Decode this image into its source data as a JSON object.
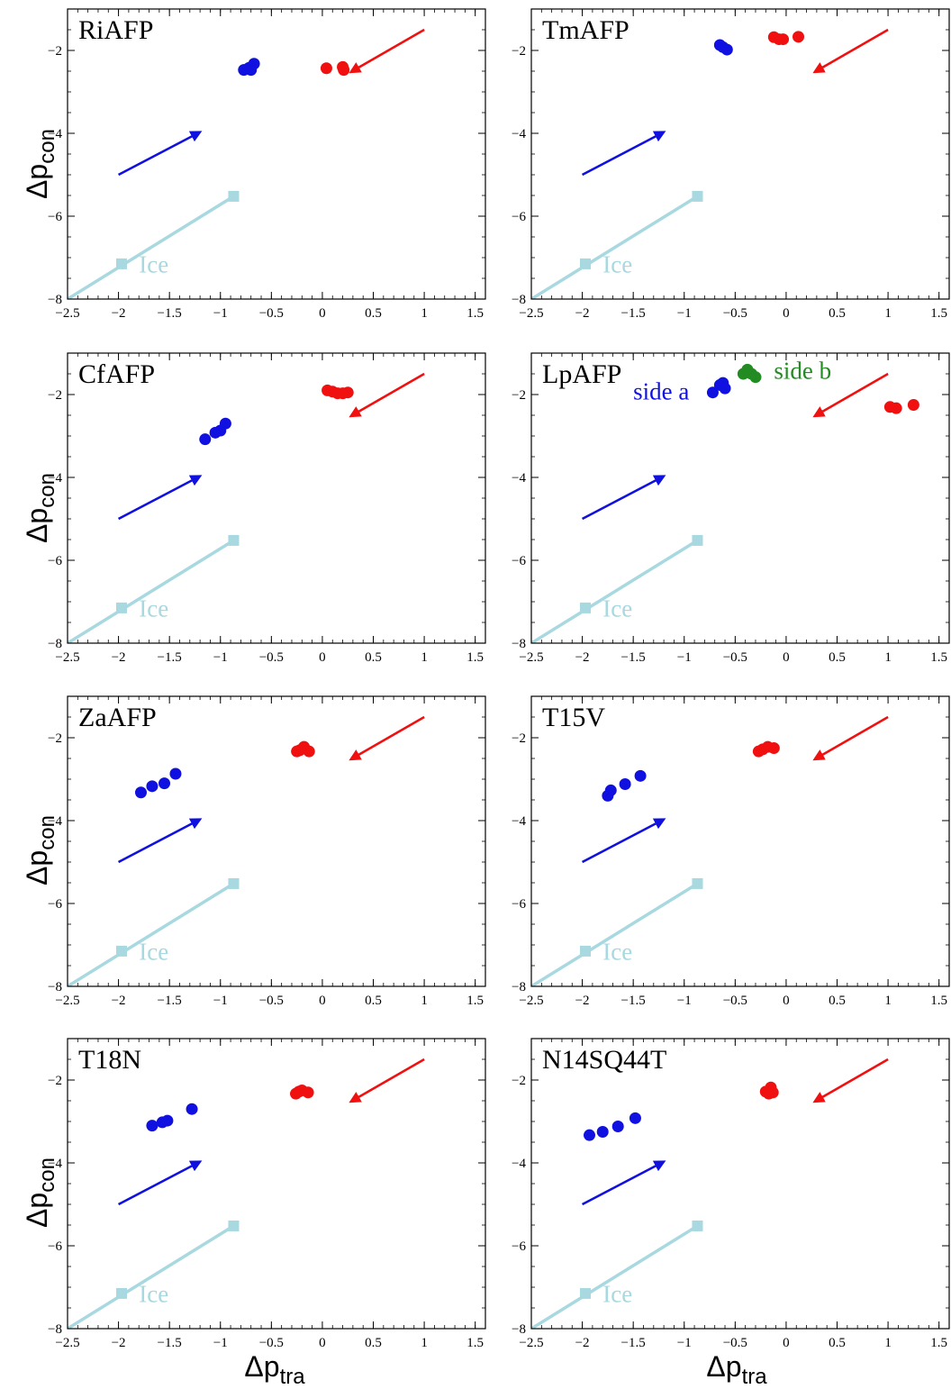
{
  "chart_data": {
    "type": "scatter",
    "xlabel": "Δp",
    "xlabel_sub": "tra",
    "ylabel": "Δp",
    "ylabel_sub": "con",
    "xlim": [
      -2.5,
      1.6
    ],
    "ylim": [
      -8,
      -1
    ],
    "xticks": [
      -2.5,
      -2,
      -1.5,
      -1,
      -0.5,
      0,
      0.5,
      1,
      1.5
    ],
    "xtick_labels": [
      "−2.5",
      "−2",
      "−1.5",
      "−1",
      "−0.5",
      "0",
      "0.5",
      "1",
      "1.5"
    ],
    "yticks": [
      -8,
      -6,
      -4,
      -2
    ],
    "ytick_labels": [
      "−8",
      "−6",
      "−4",
      "−2"
    ],
    "colors": {
      "blue": "#1010e0",
      "red": "#f01010",
      "green": "#228b22",
      "ice": "#a8d8e0"
    },
    "ice": {
      "label": "Ice",
      "line": [
        [
          -2.5,
          -8.0
        ],
        [
          -0.87,
          -5.52
        ]
      ],
      "markers": [
        [
          -1.97,
          -7.15
        ],
        [
          -0.87,
          -5.52
        ]
      ]
    },
    "blue_arrow": {
      "from": [
        -2.0,
        -5.0
      ],
      "to": [
        -1.2,
        -3.97
      ]
    },
    "red_arrow": {
      "from": [
        1.0,
        -1.5
      ],
      "to": [
        0.28,
        -2.52
      ]
    },
    "panels": [
      {
        "title": "RiAFP",
        "blue_points": [
          [
            -0.77,
            -2.47
          ],
          [
            -0.72,
            -2.42
          ],
          [
            -0.7,
            -2.47
          ],
          [
            -0.67,
            -2.32
          ]
        ],
        "red_points": [
          [
            0.04,
            -2.43
          ],
          [
            0.2,
            -2.4
          ],
          [
            0.21,
            -2.47
          ]
        ]
      },
      {
        "title": "TmAFP",
        "blue_points": [
          [
            -0.65,
            -1.87
          ],
          [
            -0.62,
            -1.92
          ],
          [
            -0.58,
            -1.98
          ]
        ],
        "red_points": [
          [
            -0.12,
            -1.68
          ],
          [
            -0.07,
            -1.73
          ],
          [
            -0.03,
            -1.73
          ],
          [
            0.12,
            -1.67
          ]
        ]
      },
      {
        "title": "CfAFP",
        "blue_points": [
          [
            -1.15,
            -3.08
          ],
          [
            -1.05,
            -2.92
          ],
          [
            -1.0,
            -2.87
          ],
          [
            -0.95,
            -2.7
          ]
        ],
        "red_points": [
          [
            0.05,
            -1.9
          ],
          [
            0.1,
            -1.93
          ],
          [
            0.15,
            -1.97
          ],
          [
            0.2,
            -1.97
          ],
          [
            0.25,
            -1.95
          ]
        ]
      },
      {
        "title": "LpAFP",
        "blue_points": [
          [
            -0.72,
            -1.95
          ],
          [
            -0.65,
            -1.77
          ],
          [
            -0.62,
            -1.72
          ],
          [
            -0.6,
            -1.85
          ]
        ],
        "red_points": [
          [
            1.02,
            -2.3
          ],
          [
            1.08,
            -2.33
          ],
          [
            1.25,
            -2.25
          ]
        ],
        "green_points": [
          [
            -0.42,
            -1.5
          ],
          [
            -0.38,
            -1.4
          ],
          [
            -0.34,
            -1.5
          ],
          [
            -0.3,
            -1.58
          ]
        ],
        "annotations": [
          {
            "text": "side a",
            "x": -1.5,
            "y": -1.92,
            "color": "blue"
          },
          {
            "text": "side b",
            "x": -0.12,
            "y": -1.42,
            "color": "green"
          }
        ]
      },
      {
        "title": "ZaAFP",
        "blue_points": [
          [
            -1.78,
            -3.32
          ],
          [
            -1.67,
            -3.17
          ],
          [
            -1.55,
            -3.1
          ],
          [
            -1.44,
            -2.87
          ]
        ],
        "red_points": [
          [
            -0.25,
            -2.33
          ],
          [
            -0.22,
            -2.3
          ],
          [
            -0.18,
            -2.22
          ],
          [
            -0.13,
            -2.33
          ]
        ]
      },
      {
        "title": "T15V",
        "blue_points": [
          [
            -1.75,
            -3.4
          ],
          [
            -1.72,
            -3.27
          ],
          [
            -1.58,
            -3.12
          ],
          [
            -1.43,
            -2.92
          ]
        ],
        "red_points": [
          [
            -0.27,
            -2.33
          ],
          [
            -0.23,
            -2.28
          ],
          [
            -0.18,
            -2.22
          ],
          [
            -0.12,
            -2.25
          ]
        ]
      },
      {
        "title": "T18N",
        "blue_points": [
          [
            -1.67,
            -3.1
          ],
          [
            -1.57,
            -3.02
          ],
          [
            -1.52,
            -2.98
          ],
          [
            -1.28,
            -2.7
          ]
        ],
        "red_points": [
          [
            -0.26,
            -2.33
          ],
          [
            -0.23,
            -2.28
          ],
          [
            -0.2,
            -2.25
          ],
          [
            -0.14,
            -2.3
          ]
        ]
      },
      {
        "title": "N14SQ44T",
        "blue_points": [
          [
            -1.93,
            -3.33
          ],
          [
            -1.8,
            -3.25
          ],
          [
            -1.65,
            -3.12
          ],
          [
            -1.48,
            -2.92
          ]
        ],
        "red_points": [
          [
            -0.2,
            -2.28
          ],
          [
            -0.17,
            -2.33
          ],
          [
            -0.15,
            -2.18
          ],
          [
            -0.13,
            -2.3
          ]
        ]
      }
    ]
  }
}
